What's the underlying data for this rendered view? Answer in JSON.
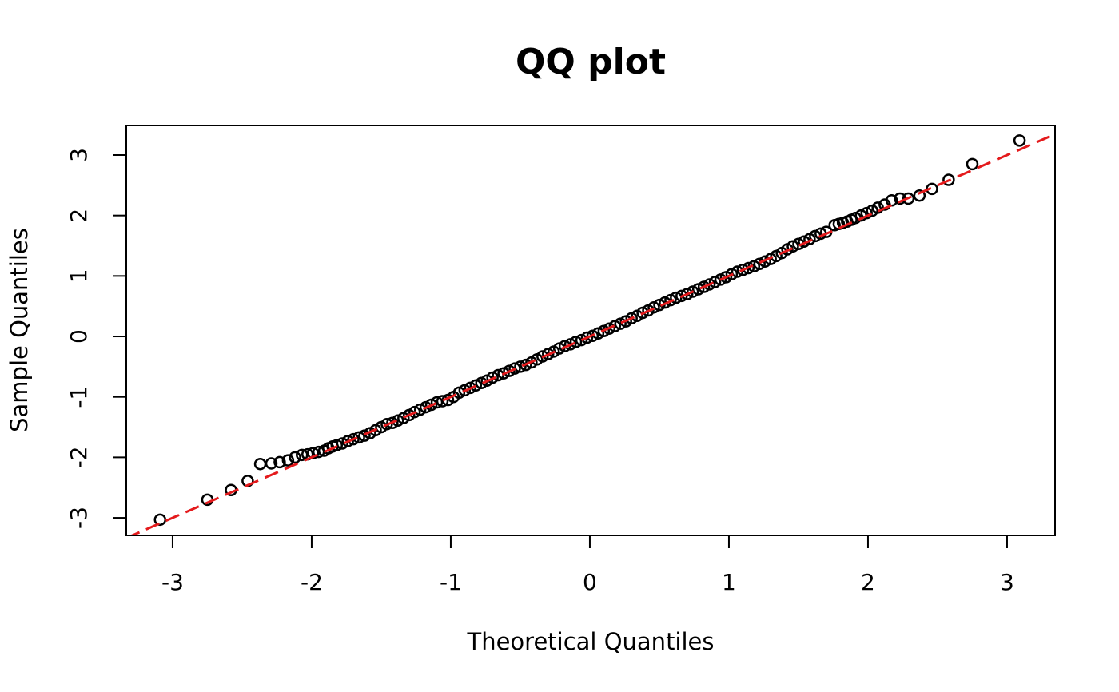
{
  "chart_data": {
    "type": "scatter",
    "title": "QQ plot",
    "x_label": "Theoretical Quantiles",
    "y_label": "Sample Quantiles",
    "x": [
      -3.09,
      -2.75,
      -2.58,
      -2.46,
      -2.37,
      -2.29,
      -2.23,
      -2.17,
      -2.12,
      -2.07,
      -2.03,
      -1.99,
      -1.95,
      -1.91,
      -1.88,
      -1.85,
      -1.82,
      -1.78,
      -1.74,
      -1.7,
      -1.66,
      -1.62,
      -1.58,
      -1.54,
      -1.5,
      -1.46,
      -1.42,
      -1.38,
      -1.34,
      -1.3,
      -1.26,
      -1.22,
      -1.18,
      -1.14,
      -1.1,
      -1.06,
      -1.02,
      -0.98,
      -0.94,
      -0.9,
      -0.86,
      -0.82,
      -0.78,
      -0.74,
      -0.7,
      -0.66,
      -0.62,
      -0.58,
      -0.54,
      -0.5,
      -0.46,
      -0.42,
      -0.38,
      -0.34,
      -0.3,
      -0.26,
      -0.22,
      -0.18,
      -0.14,
      -0.1,
      -0.06,
      -0.02,
      0.02,
      0.06,
      0.1,
      0.14,
      0.18,
      0.22,
      0.26,
      0.3,
      0.34,
      0.38,
      0.42,
      0.46,
      0.5,
      0.54,
      0.58,
      0.62,
      0.66,
      0.7,
      0.74,
      0.78,
      0.82,
      0.86,
      0.9,
      0.94,
      0.98,
      1.02,
      1.06,
      1.1,
      1.14,
      1.18,
      1.22,
      1.26,
      1.3,
      1.34,
      1.38,
      1.42,
      1.46,
      1.5,
      1.54,
      1.58,
      1.62,
      1.66,
      1.7,
      1.76,
      1.79,
      1.82,
      1.85,
      1.88,
      1.91,
      1.95,
      1.99,
      2.03,
      2.07,
      2.12,
      2.17,
      2.23,
      2.29,
      2.37,
      2.46,
      2.58,
      2.75,
      3.09
    ],
    "values": [
      -3.03,
      -2.7,
      -2.54,
      -2.39,
      -2.11,
      -2.1,
      -2.08,
      -2.05,
      -2.0,
      -1.96,
      -1.95,
      -1.93,
      -1.91,
      -1.89,
      -1.85,
      -1.82,
      -1.8,
      -1.77,
      -1.73,
      -1.7,
      -1.67,
      -1.64,
      -1.6,
      -1.55,
      -1.5,
      -1.45,
      -1.43,
      -1.39,
      -1.35,
      -1.3,
      -1.25,
      -1.21,
      -1.17,
      -1.13,
      -1.09,
      -1.07,
      -1.05,
      -1.0,
      -0.93,
      -0.89,
      -0.85,
      -0.81,
      -0.77,
      -0.73,
      -0.68,
      -0.64,
      -0.61,
      -0.57,
      -0.53,
      -0.5,
      -0.47,
      -0.43,
      -0.38,
      -0.33,
      -0.29,
      -0.25,
      -0.2,
      -0.16,
      -0.13,
      -0.09,
      -0.06,
      -0.02,
      0.01,
      0.05,
      0.09,
      0.13,
      0.17,
      0.21,
      0.25,
      0.3,
      0.34,
      0.39,
      0.43,
      0.48,
      0.52,
      0.56,
      0.6,
      0.64,
      0.67,
      0.7,
      0.74,
      0.78,
      0.82,
      0.86,
      0.9,
      0.94,
      0.98,
      1.03,
      1.07,
      1.1,
      1.13,
      1.16,
      1.2,
      1.24,
      1.28,
      1.33,
      1.38,
      1.44,
      1.49,
      1.53,
      1.57,
      1.61,
      1.66,
      1.7,
      1.73,
      1.84,
      1.86,
      1.88,
      1.9,
      1.93,
      1.96,
      2.0,
      2.04,
      2.08,
      2.13,
      2.18,
      2.25,
      2.28,
      2.28,
      2.33,
      2.44,
      2.59,
      2.85,
      3.24
    ],
    "color": "#000000",
    "reference_line": {
      "intercept": 0.0,
      "slope": 1.0,
      "color": "#e41a1c"
    },
    "xlim": [
      -3.333,
      3.345
    ],
    "ylim": [
      -3.29,
      3.489
    ],
    "xticks": [
      -3,
      -2,
      -1,
      0,
      1,
      2,
      3
    ],
    "yticks": [
      -3,
      -2,
      -1,
      0,
      1,
      2,
      3
    ]
  }
}
